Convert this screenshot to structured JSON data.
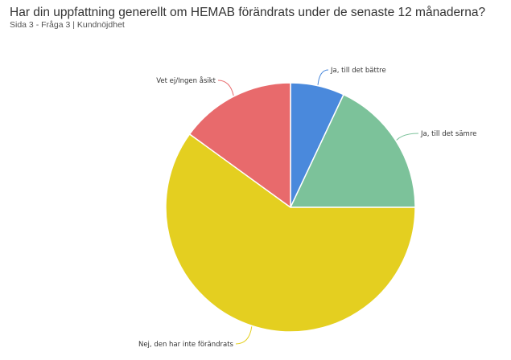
{
  "header": {
    "title": "Har din uppfattning generellt om HEMAB förändrats under de senaste 12 månaderna?",
    "subtitle": "Sida 3 - Fråga 3 | Kundnöjdhet"
  },
  "chart_data": {
    "type": "pie",
    "title": "Har din uppfattning generellt om HEMAB förändrats under de senaste 12 månaderna?",
    "subtitle": "Sida 3 - Fråga 3 | Kundnöjdhet",
    "legend": "none",
    "slices": [
      {
        "label": "Ja, till det bättre",
        "value": 7,
        "color": "#4a89dc"
      },
      {
        "label": "Ja, till det sämre",
        "value": 18,
        "color": "#7cc29a"
      },
      {
        "label": "Nej, den har inte förändrats",
        "value": 60,
        "color": "#e4cf20"
      },
      {
        "label": "Vet ej/Ingen åsikt",
        "value": 15,
        "color": "#e86a6c"
      }
    ]
  }
}
